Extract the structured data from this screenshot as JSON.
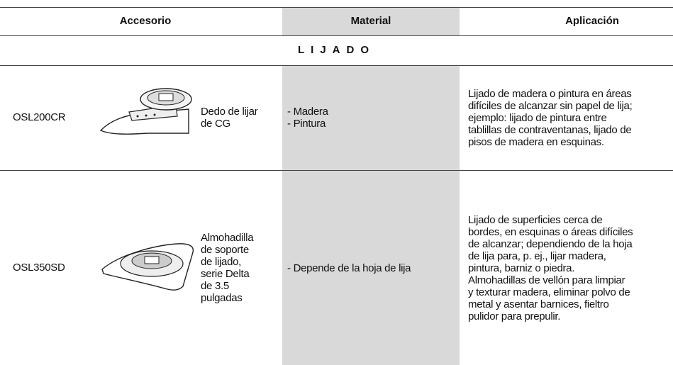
{
  "table": {
    "headers": [
      "Accesorio",
      "Material",
      "Aplicación"
    ],
    "section": "LIJADO",
    "rows": [
      {
        "code": "OSL200CR",
        "name": [
          "Dedo de lijar",
          "de CG"
        ],
        "material": [
          "- Madera",
          "- Pintura"
        ],
        "application": [
          "Lijado de madera o pintura en áreas",
          "difíciles de alcanzar sin papel de lija;",
          "ejemplo: lijado de pintura entre",
          "tablillas de contraventanas, lijado de",
          "pisos de madera en esquinas."
        ]
      },
      {
        "code": "OSL350SD",
        "name": [
          "Almohadilla",
          "de soporte",
          "de lijado,",
          "serie Delta",
          "de 3.5",
          "pulgadas"
        ],
        "material": [
          "- Depende de la hoja de lija"
        ],
        "application": [
          "Lijado de superficies cerca de",
          "bordes, en esquinas o áreas difíciles",
          "de alcanzar; dependiendo de la hoja",
          "de lija para, p. ej., lijar madera,",
          "pintura, barniz o piedra.",
          "Almohadillas de vellón para limpiar",
          "y texturar madera, eliminar polvo de",
          "metal y asentar barnices, fieltro",
          "pulidor para prepulir."
        ]
      }
    ]
  }
}
